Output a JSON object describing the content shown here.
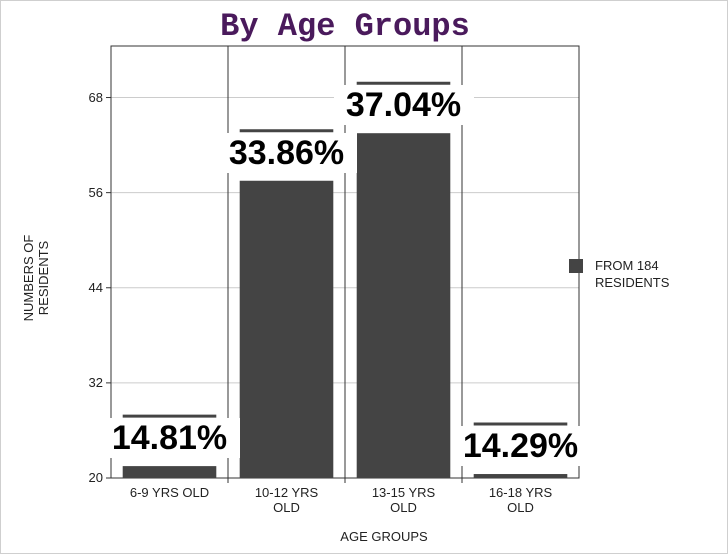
{
  "chart_data": {
    "type": "bar",
    "title": "By Age Groups",
    "x_label": "AGE GROUPS",
    "y_label": "NUMBERS OF RESIDENTS",
    "categories": [
      "6-9 YRS OLD",
      "10-12 YRS OLD",
      "13-15 YRS OLD",
      "16-18 YRS OLD"
    ],
    "series": [
      {
        "name": "FROM 184 RESIDENTS",
        "color": "#444444",
        "values": [
          21.5,
          57.5,
          63.5,
          20.5
        ]
      }
    ],
    "annotations": [
      "14.81%",
      "33.86%",
      "37.04%",
      "14.29%"
    ],
    "ylim": [
      20,
      74.5
    ],
    "yticks": [
      20,
      32,
      44,
      56,
      68
    ],
    "grid": true,
    "legend": "right"
  }
}
